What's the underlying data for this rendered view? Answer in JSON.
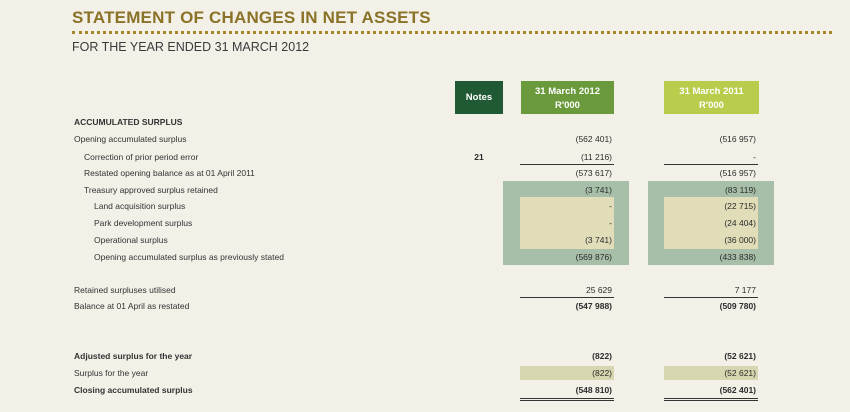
{
  "header": {
    "title": "STATEMENT OF CHANGES IN NET ASSETS",
    "subtitle": "FOR THE YEAR ENDED 31 MARCH 2012"
  },
  "columns": {
    "notes": "Notes",
    "col2012_date": "31 March 2012",
    "col2012_unit": "R'000",
    "col2011_date": "31 March 2011",
    "col2011_unit": "R'000"
  },
  "rows": [
    {
      "label": "ACCUMULATED SURPLUS",
      "note": "",
      "v2012": "",
      "v2011": ""
    },
    {
      "label": "Opening accumulated surplus",
      "note": "",
      "v2012": "(562 401)",
      "v2011": "(516 957)"
    },
    {
      "label": "Correction of prior period error",
      "note": "21",
      "v2012": "(11 216)",
      "v2011": "-"
    },
    {
      "label": "Restated opening balance as at 01 April 2011",
      "note": "",
      "v2012": "(573 617)",
      "v2011": "(516 957)"
    },
    {
      "label": "Treasury approved surplus retained",
      "note": "",
      "v2012": "(3 741)",
      "v2011": "(83 119)"
    },
    {
      "label": "Land acquisition surplus",
      "note": "",
      "v2012": "-",
      "v2011": "(22 715)"
    },
    {
      "label": "Park development surplus",
      "note": "",
      "v2012": "-",
      "v2011": "(24 404)"
    },
    {
      "label": "Operational surplus",
      "note": "",
      "v2012": "(3 741)",
      "v2011": "(36 000)"
    },
    {
      "label": "Opening accumulated surplus as previously stated",
      "note": "",
      "v2012": "(569 876)",
      "v2011": "(433 838)"
    },
    {
      "label": "Retained surpluses utilised",
      "note": "",
      "v2012": "25 629",
      "v2011": "7 177"
    },
    {
      "label": "Balance at 01 April as restated",
      "note": "",
      "v2012": "(547 988)",
      "v2011": "(509 780)"
    },
    {
      "label": "Adjusted surplus for the year",
      "note": "",
      "v2012": "(822)",
      "v2011": "(52 621)"
    },
    {
      "label": "Surplus for the year",
      "note": "",
      "v2012": "(822)",
      "v2011": "(52 621)"
    },
    {
      "label": "Closing accumulated surplus",
      "note": "",
      "v2012": "(548 810)",
      "v2011": "(562 401)"
    }
  ]
}
